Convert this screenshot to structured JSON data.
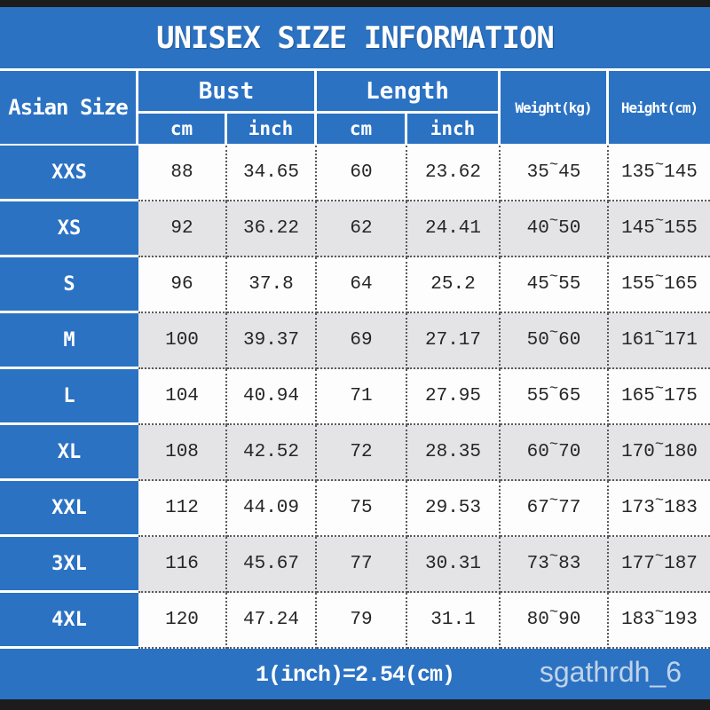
{
  "title": "UNISEX SIZE INFORMATION",
  "header": {
    "size_column": "Asian Size",
    "bust": "Bust",
    "length": "Length",
    "cm": "cm",
    "inch": "inch",
    "weight": "Weight(kg)",
    "height": "Height(cm)",
    "tilde": "~"
  },
  "rows": [
    {
      "size": "XXS",
      "bust_cm": "88",
      "bust_inch": "34.65",
      "length_cm": "60",
      "length_inch": "23.62",
      "weight_min": "35",
      "weight_max": "45",
      "height_min": "135",
      "height_max": "145"
    },
    {
      "size": "XS",
      "bust_cm": "92",
      "bust_inch": "36.22",
      "length_cm": "62",
      "length_inch": "24.41",
      "weight_min": "40",
      "weight_max": "50",
      "height_min": "145",
      "height_max": "155"
    },
    {
      "size": "S",
      "bust_cm": "96",
      "bust_inch": "37.8",
      "length_cm": "64",
      "length_inch": "25.2",
      "weight_min": "45",
      "weight_max": "55",
      "height_min": "155",
      "height_max": "165"
    },
    {
      "size": "M",
      "bust_cm": "100",
      "bust_inch": "39.37",
      "length_cm": "69",
      "length_inch": "27.17",
      "weight_min": "50",
      "weight_max": "60",
      "height_min": "161",
      "height_max": "171"
    },
    {
      "size": "L",
      "bust_cm": "104",
      "bust_inch": "40.94",
      "length_cm": "71",
      "length_inch": "27.95",
      "weight_min": "55",
      "weight_max": "65",
      "height_min": "165",
      "height_max": "175"
    },
    {
      "size": "XL",
      "bust_cm": "108",
      "bust_inch": "42.52",
      "length_cm": "72",
      "length_inch": "28.35",
      "weight_min": "60",
      "weight_max": "70",
      "height_min": "170",
      "height_max": "180"
    },
    {
      "size": "XXL",
      "bust_cm": "112",
      "bust_inch": "44.09",
      "length_cm": "75",
      "length_inch": "29.53",
      "weight_min": "67",
      "weight_max": "77",
      "height_min": "173",
      "height_max": "183"
    },
    {
      "size": "3XL",
      "bust_cm": "116",
      "bust_inch": "45.67",
      "length_cm": "77",
      "length_inch": "30.31",
      "weight_min": "73",
      "weight_max": "83",
      "height_min": "177",
      "height_max": "187"
    },
    {
      "size": "4XL",
      "bust_cm": "120",
      "bust_inch": "47.24",
      "length_cm": "79",
      "length_inch": "31.1",
      "weight_min": "80",
      "weight_max": "90",
      "height_min": "183",
      "height_max": "193"
    }
  ],
  "footer": {
    "conversion_note": "1(inch)=2.54(cm)",
    "watermark": "sgathrdh_6"
  },
  "colors": {
    "primary_blue": "#2b72c3",
    "bar_black": "#1c1c1c",
    "row_alt_gray": "#e4e3e6",
    "row_white": "#fdfdfd",
    "text_dark": "#262626",
    "header_text": "#ffffff"
  }
}
